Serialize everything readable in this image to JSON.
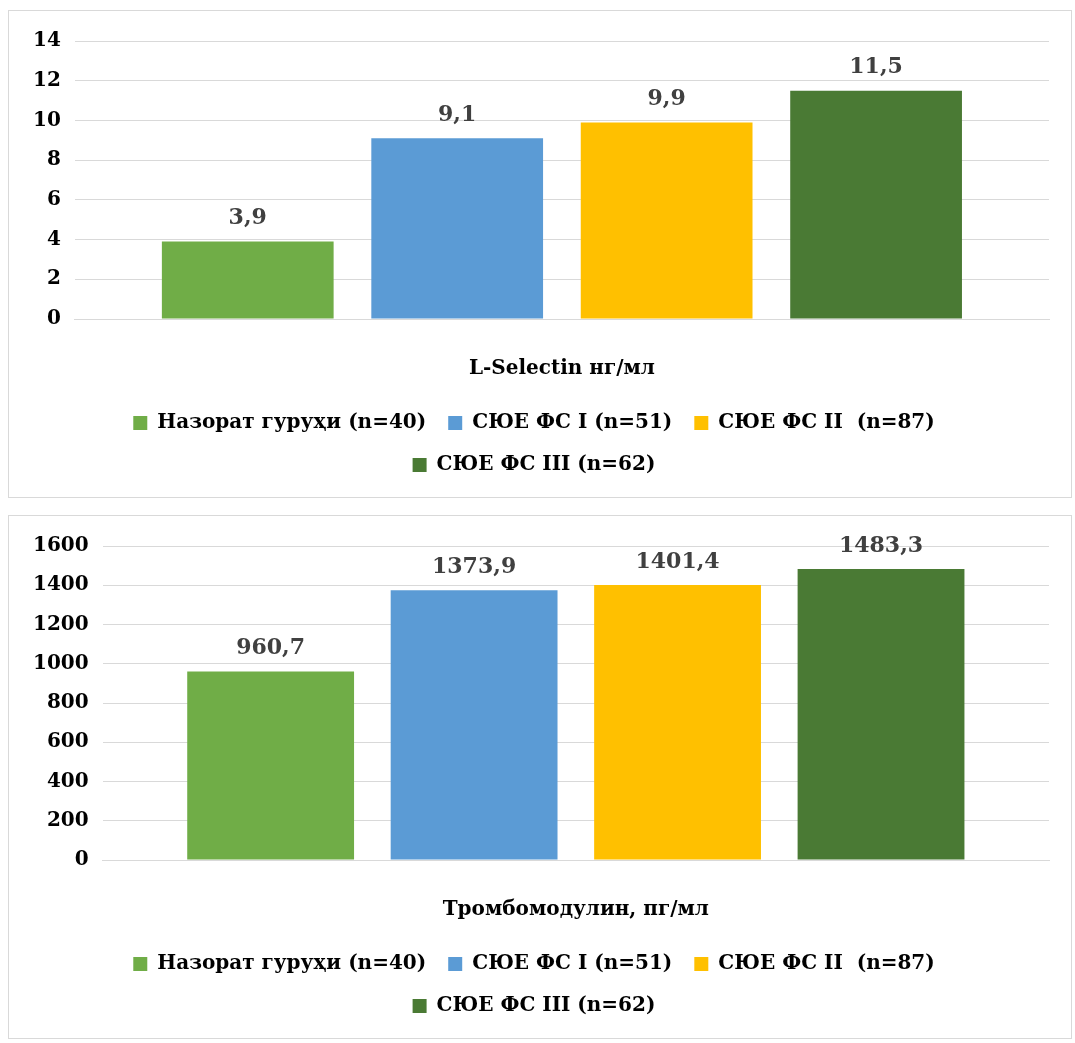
{
  "chart_data": [
    {
      "type": "bar",
      "xlabel": "L-Selectin нг/мл",
      "categories": [
        null
      ],
      "ylim": [
        0,
        14
      ],
      "yticks": [
        0,
        2,
        4,
        6,
        8,
        10,
        12,
        14
      ],
      "grid": "y",
      "legend": "bottom",
      "series": [
        {
          "name": "Назорат гуруҳи (n=40)",
          "color": "#70ad47",
          "values": [
            3.9
          ],
          "value_labels": [
            "3,9"
          ]
        },
        {
          "name": "СЮЕ ФС I (n=51)",
          "color": "#5b9bd5",
          "values": [
            9.1
          ],
          "value_labels": [
            "9,1"
          ]
        },
        {
          "name": "СЮЕ ФС II  (n=87)",
          "color": "#ffc000",
          "values": [
            9.9
          ],
          "value_labels": [
            "9,9"
          ]
        },
        {
          "name": "СЮЕ ФС III (n=62)",
          "color": "#4a7a34",
          "values": [
            11.5
          ],
          "value_labels": [
            "11,5"
          ]
        }
      ]
    },
    {
      "type": "bar",
      "xlabel": "Тромбомодулин, пг/мл",
      "categories": [
        null
      ],
      "ylim": [
        0,
        1600
      ],
      "yticks": [
        0,
        200,
        400,
        600,
        800,
        1000,
        1200,
        1400,
        1600
      ],
      "grid": "y",
      "legend": "bottom",
      "series": [
        {
          "name": "Назорат гуруҳи (n=40)",
          "color": "#70ad47",
          "values": [
            960.7
          ],
          "value_labels": [
            "960,7"
          ]
        },
        {
          "name": "СЮЕ ФС I (n=51)",
          "color": "#5b9bd5",
          "values": [
            1373.9
          ],
          "value_labels": [
            "1373,9"
          ]
        },
        {
          "name": "СЮЕ ФС II  (n=87)",
          "color": "#ffc000",
          "values": [
            1401.4
          ],
          "value_labels": [
            "1401,4"
          ]
        },
        {
          "name": "СЮЕ ФС III (n=62)",
          "color": "#4a7a34",
          "values": [
            1483.3
          ],
          "value_labels": [
            "1483,3"
          ]
        }
      ]
    }
  ]
}
